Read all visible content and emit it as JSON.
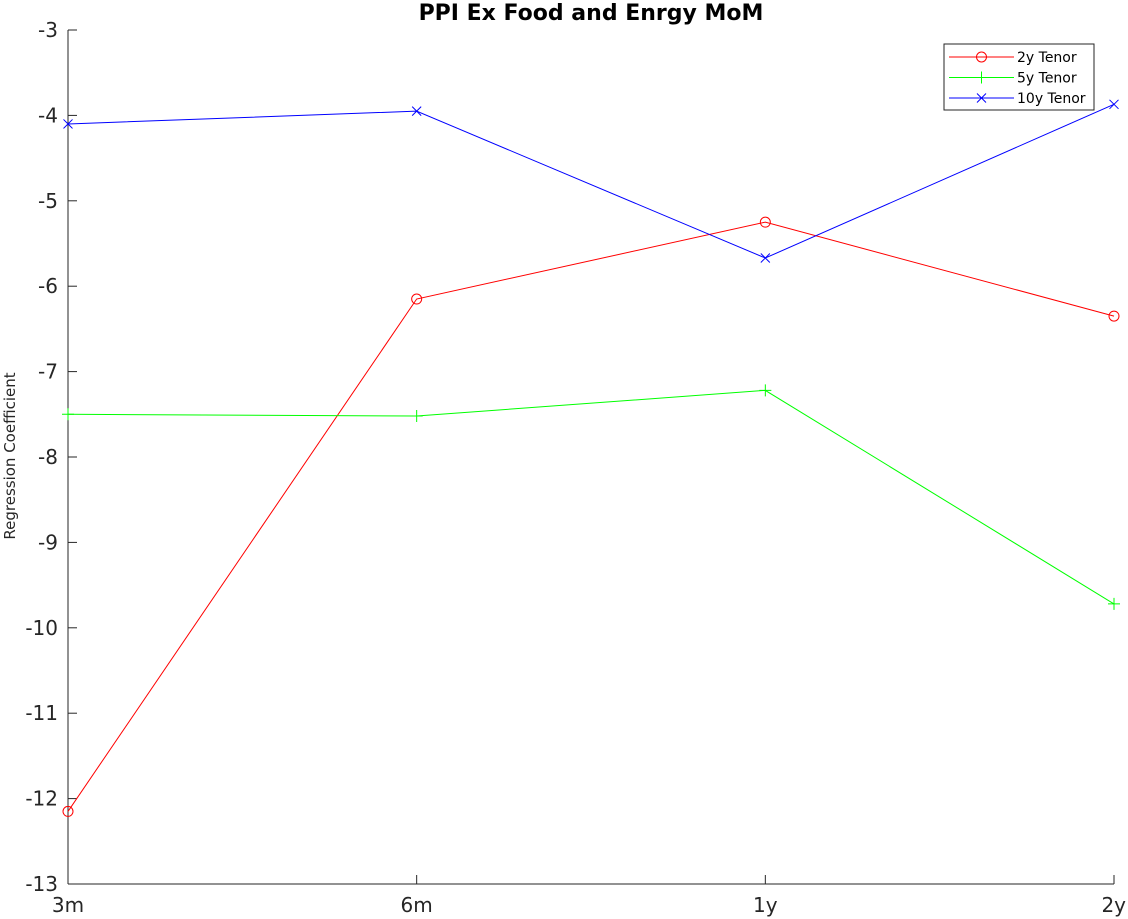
{
  "chart_data": {
    "type": "line",
    "title": "PPI Ex Food and Enrgy MoM",
    "xlabel": "",
    "ylabel": "Regression Coefficient",
    "categories": [
      "3m",
      "6m",
      "1y",
      "2y"
    ],
    "ylim": [
      -13,
      -3
    ],
    "yticks": [
      -3,
      -4,
      -5,
      -6,
      -7,
      -8,
      -9,
      -10,
      -11,
      -12,
      -13
    ],
    "grid": false,
    "legend_position": "top-right",
    "series": [
      {
        "name": "2y Tenor",
        "color": "#ff0000",
        "marker": "circle",
        "values": [
          -12.15,
          -6.15,
          -5.25,
          -6.35
        ]
      },
      {
        "name": "5y Tenor",
        "color": "#00ff00",
        "marker": "plus",
        "values": [
          -7.5,
          -7.52,
          -7.22,
          -9.72
        ]
      },
      {
        "name": "10y Tenor",
        "color": "#0000ff",
        "marker": "x",
        "values": [
          -4.1,
          -3.95,
          -5.67,
          -3.87
        ]
      }
    ]
  }
}
